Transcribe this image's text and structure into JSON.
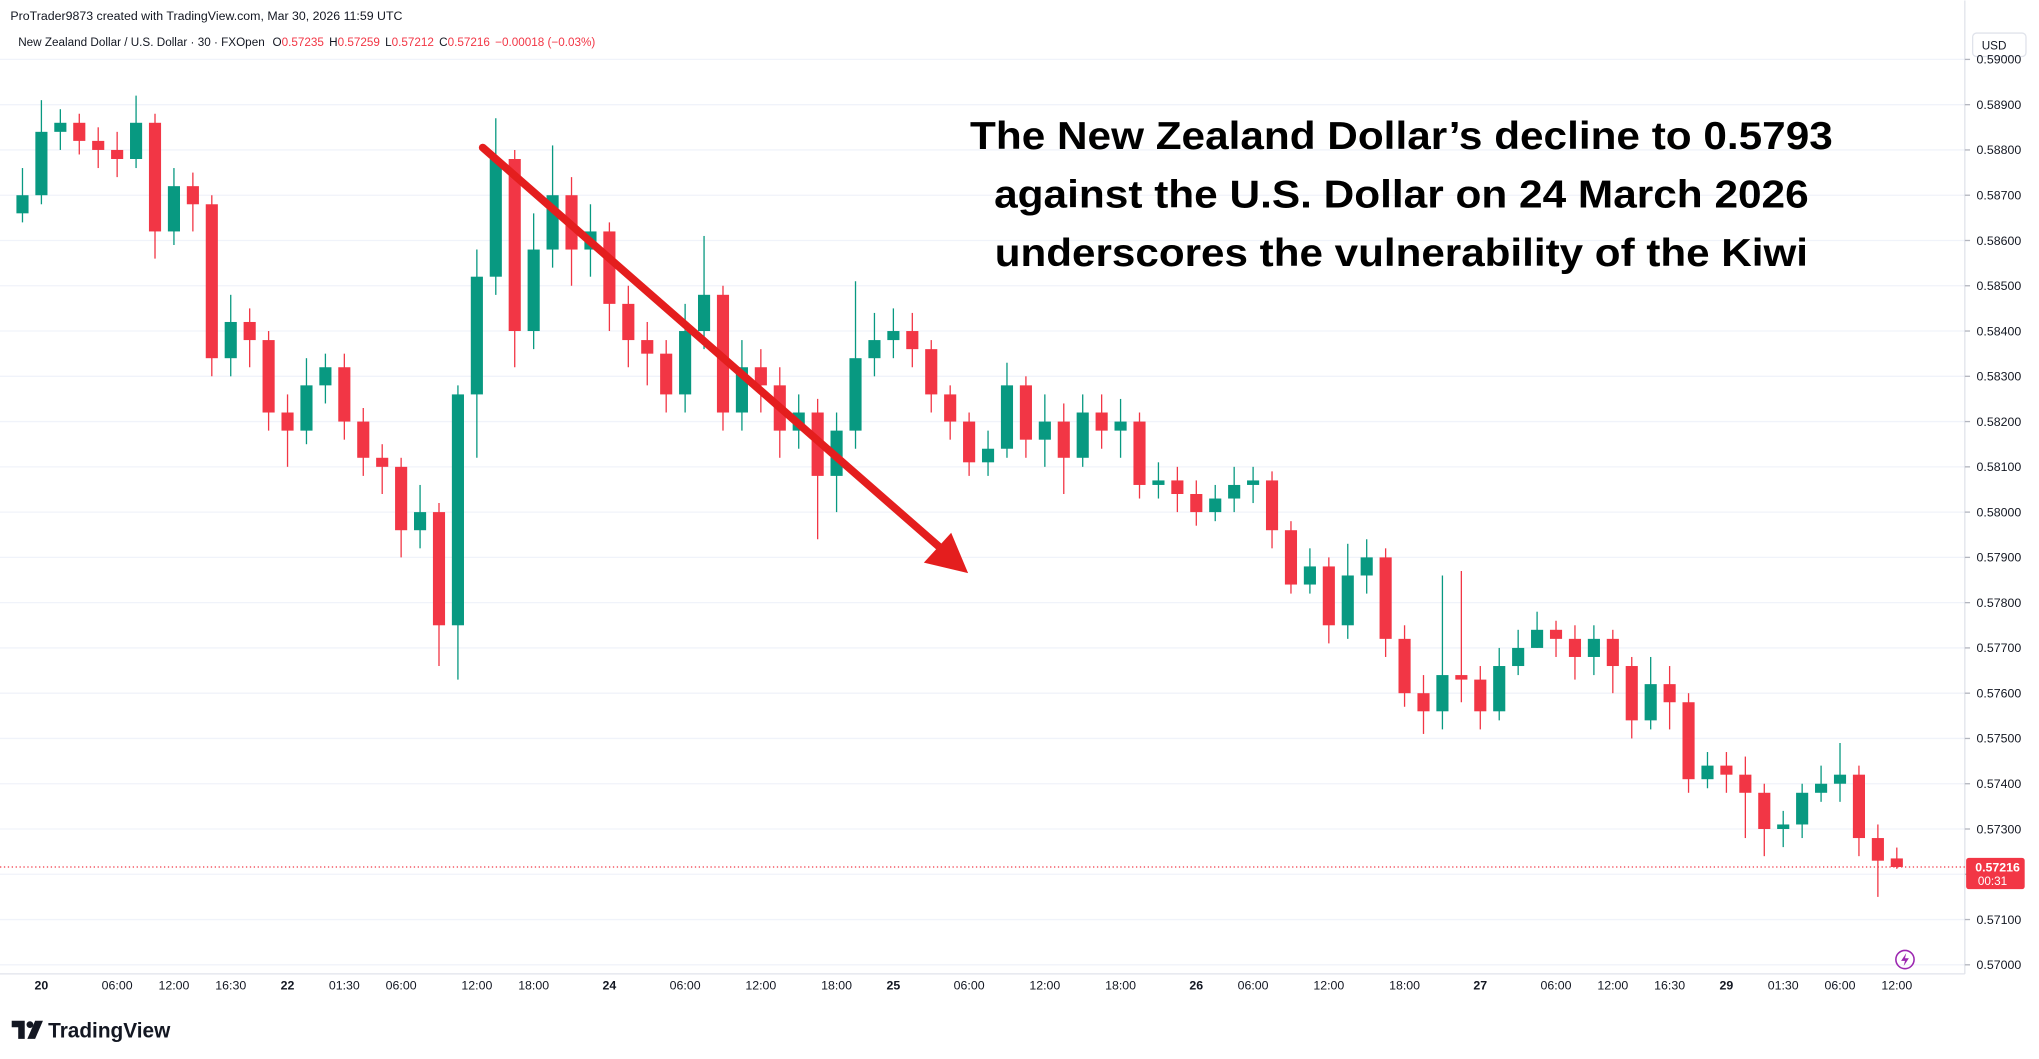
{
  "header": {
    "attribution": "ProTrader9873 created with TradingView.com, Mar 30, 2026 11:59 UTC",
    "symbol": "New Zealand Dollar / U.S. Dollar · 30 · FXOpen",
    "ohlc": [
      {
        "label": "O",
        "value": 0.57235
      },
      {
        "label": "H",
        "value": 0.57259
      },
      {
        "label": "L",
        "value": 0.57212
      },
      {
        "label": "C",
        "value": 0.57216
      }
    ],
    "change": "−0.00018 (−0.03%)"
  },
  "footer": {
    "brand": "TradingView"
  },
  "chart_data": {
    "type": "candlestick",
    "annotation": [
      "The New Zealand Dollar’s decline to 0.5793",
      "against the U.S. Dollar on 24 March 2026",
      "underscores the vulnerability of the Kiwi"
    ],
    "currency": "USD",
    "last_price": 0.57216,
    "countdown": "00:31",
    "up_color": "#089981",
    "down_color": "#f23645",
    "grid": true,
    "ylim": [
      0.5698,
      0.5913
    ],
    "yticks": [
      {
        "value": 0.57,
        "label": "0.57000"
      },
      {
        "value": 0.571,
        "label": "0.57100"
      },
      {
        "value": 0.572,
        "label": "0.57200"
      },
      {
        "value": 0.573,
        "label": "0.57300"
      },
      {
        "value": 0.574,
        "label": "0.57400"
      },
      {
        "value": 0.575,
        "label": "0.57500"
      },
      {
        "value": 0.576,
        "label": "0.57600"
      },
      {
        "value": 0.577,
        "label": "0.57700"
      },
      {
        "value": 0.578,
        "label": "0.57800"
      },
      {
        "value": 0.579,
        "label": "0.57900"
      },
      {
        "value": 0.58,
        "label": "0.58000"
      },
      {
        "value": 0.581,
        "label": "0.58100"
      },
      {
        "value": 0.582,
        "label": "0.58200"
      },
      {
        "value": 0.583,
        "label": "0.58300"
      },
      {
        "value": 0.584,
        "label": "0.58400"
      },
      {
        "value": 0.585,
        "label": "0.58500"
      },
      {
        "value": 0.586,
        "label": "0.58600"
      },
      {
        "value": 0.587,
        "label": "0.58700"
      },
      {
        "value": 0.588,
        "label": "0.58800"
      },
      {
        "value": 0.589,
        "label": "0.58900"
      },
      {
        "value": 0.59,
        "label": "0.59000"
      }
    ],
    "categories": [
      null,
      "20",
      null,
      null,
      null,
      "06:00",
      null,
      null,
      "12:00",
      null,
      null,
      "16:30",
      null,
      null,
      "22",
      null,
      null,
      "01:30",
      null,
      null,
      "06:00",
      null,
      null,
      null,
      "12:00",
      null,
      null,
      "18:00",
      null,
      null,
      null,
      "24",
      null,
      null,
      null,
      "06:00",
      null,
      null,
      null,
      "12:00",
      null,
      null,
      null,
      "18:00",
      null,
      null,
      "25",
      null,
      null,
      null,
      "06:00",
      null,
      null,
      null,
      "12:00",
      null,
      null,
      null,
      "18:00",
      null,
      null,
      null,
      "26",
      null,
      null,
      "06:00",
      null,
      null,
      null,
      "12:00",
      null,
      null,
      null,
      "18:00",
      null,
      null,
      null,
      "27",
      null,
      null,
      null,
      "06:00",
      null,
      null,
      "12:00",
      null,
      null,
      "16:30",
      null,
      null,
      "29",
      null,
      null,
      "01:30",
      null,
      null,
      "06:00",
      null,
      null,
      "12:00"
    ],
    "open": [
      0.5866,
      0.587,
      0.5884,
      0.5886,
      0.5882,
      0.588,
      0.5878,
      0.5886,
      0.5862,
      0.5872,
      0.5868,
      0.5834,
      0.5842,
      0.5838,
      0.5822,
      0.5818,
      0.5828,
      0.5832,
      0.582,
      0.5812,
      0.581,
      0.5796,
      0.58,
      0.5775,
      0.5826,
      0.5852,
      0.5878,
      0.584,
      0.5858,
      0.587,
      0.5858,
      0.5862,
      0.5846,
      0.5838,
      0.5835,
      0.5826,
      0.584,
      0.5848,
      0.5822,
      0.5832,
      0.5828,
      0.5818,
      0.5822,
      0.5808,
      0.5818,
      0.5834,
      0.5838,
      0.584,
      0.5836,
      0.5826,
      0.582,
      0.5811,
      0.5814,
      0.5828,
      0.5816,
      0.582,
      0.5812,
      0.5822,
      0.5818,
      0.582,
      0.5806,
      0.5807,
      0.5804,
      0.58,
      0.5803,
      0.5806,
      0.5807,
      0.5796,
      0.5784,
      0.5788,
      0.5775,
      0.5786,
      0.579,
      0.5772,
      0.576,
      0.5756,
      0.5764,
      0.5763,
      0.5756,
      0.5766,
      0.577,
      0.5774,
      0.5772,
      0.5768,
      0.5772,
      0.5766,
      0.5754,
      0.5762,
      0.5758,
      0.5741,
      0.5744,
      0.5742,
      0.5738,
      0.573,
      0.5731,
      0.5738,
      0.574,
      0.5742,
      0.5728,
      0.57235
    ],
    "high": [
      0.5876,
      0.5891,
      0.5889,
      0.5888,
      0.5885,
      0.5884,
      0.5892,
      0.5888,
      0.5876,
      0.5875,
      0.587,
      0.5848,
      0.5845,
      0.584,
      0.5826,
      0.5834,
      0.5835,
      0.5835,
      0.5823,
      0.5815,
      0.5812,
      0.5806,
      0.5802,
      0.5828,
      0.5858,
      0.5887,
      0.588,
      0.5866,
      0.5881,
      0.5874,
      0.5868,
      0.5864,
      0.585,
      0.5842,
      0.5838,
      0.5846,
      0.5861,
      0.585,
      0.5838,
      0.5836,
      0.5832,
      0.5826,
      0.5825,
      0.5822,
      0.5851,
      0.5844,
      0.5845,
      0.5844,
      0.5838,
      0.5828,
      0.5822,
      0.5818,
      0.5833,
      0.583,
      0.5826,
      0.5824,
      0.5826,
      0.5826,
      0.5825,
      0.5822,
      0.5811,
      0.581,
      0.5807,
      0.5806,
      0.581,
      0.581,
      0.5809,
      0.5798,
      0.5792,
      0.579,
      0.5793,
      0.5794,
      0.5792,
      0.5775,
      0.5764,
      0.5786,
      0.5787,
      0.5766,
      0.577,
      0.5774,
      0.5778,
      0.5776,
      0.5775,
      0.5775,
      0.5774,
      0.5768,
      0.5768,
      0.5766,
      0.576,
      0.5747,
      0.5747,
      0.5746,
      0.574,
      0.5734,
      0.574,
      0.5744,
      0.5749,
      0.5744,
      0.5731,
      0.57259
    ],
    "low": [
      0.5864,
      0.5868,
      0.588,
      0.5879,
      0.5876,
      0.5874,
      0.5876,
      0.5856,
      0.5859,
      0.5862,
      0.583,
      0.583,
      0.5832,
      0.5818,
      0.581,
      0.5815,
      0.5824,
      0.5816,
      0.5808,
      0.5804,
      0.579,
      0.5792,
      0.5766,
      0.5763,
      0.5812,
      0.5848,
      0.5832,
      0.5836,
      0.5854,
      0.585,
      0.5852,
      0.584,
      0.5832,
      0.5828,
      0.5822,
      0.5822,
      0.5836,
      0.5818,
      0.5818,
      0.5822,
      0.5812,
      0.5814,
      0.5794,
      0.58,
      0.5814,
      0.583,
      0.5834,
      0.5832,
      0.5822,
      0.5816,
      0.5808,
      0.5808,
      0.5812,
      0.5812,
      0.581,
      0.5804,
      0.581,
      0.5814,
      0.5812,
      0.5803,
      0.5803,
      0.58,
      0.5797,
      0.5798,
      0.58,
      0.5802,
      0.5792,
      0.5782,
      0.5782,
      0.5771,
      0.5772,
      0.5782,
      0.5768,
      0.5757,
      0.5751,
      0.5752,
      0.5758,
      0.5752,
      0.5754,
      0.5764,
      0.577,
      0.5768,
      0.5763,
      0.5764,
      0.576,
      0.575,
      0.5752,
      0.5752,
      0.5738,
      0.5739,
      0.5738,
      0.5728,
      0.5724,
      0.5726,
      0.5728,
      0.5736,
      0.5736,
      0.5724,
      0.5715,
      0.57212
    ],
    "close": [
      0.587,
      0.5884,
      0.5886,
      0.5882,
      0.588,
      0.5878,
      0.5886,
      0.5862,
      0.5872,
      0.5868,
      0.5834,
      0.5842,
      0.5838,
      0.5822,
      0.5818,
      0.5828,
      0.5832,
      0.582,
      0.5812,
      0.581,
      0.5796,
      0.58,
      0.5775,
      0.5826,
      0.5852,
      0.5878,
      0.584,
      0.5858,
      0.587,
      0.5858,
      0.5862,
      0.5846,
      0.5838,
      0.5835,
      0.5826,
      0.584,
      0.5848,
      0.5822,
      0.5832,
      0.5828,
      0.5818,
      0.5822,
      0.5808,
      0.5818,
      0.5834,
      0.5838,
      0.584,
      0.5836,
      0.5826,
      0.582,
      0.5811,
      0.5814,
      0.5828,
      0.5816,
      0.582,
      0.5812,
      0.5822,
      0.5818,
      0.582,
      0.5806,
      0.5807,
      0.5804,
      0.58,
      0.5803,
      0.5806,
      0.5807,
      0.5796,
      0.5784,
      0.5788,
      0.5775,
      0.5786,
      0.579,
      0.5772,
      0.576,
      0.5756,
      0.5764,
      0.5763,
      0.5756,
      0.5766,
      0.577,
      0.5774,
      0.5772,
      0.5768,
      0.5772,
      0.5766,
      0.5754,
      0.5762,
      0.5758,
      0.5741,
      0.5744,
      0.5742,
      0.5738,
      0.573,
      0.5731,
      0.5738,
      0.574,
      0.5742,
      0.5728,
      0.5723,
      0.57216
    ]
  }
}
